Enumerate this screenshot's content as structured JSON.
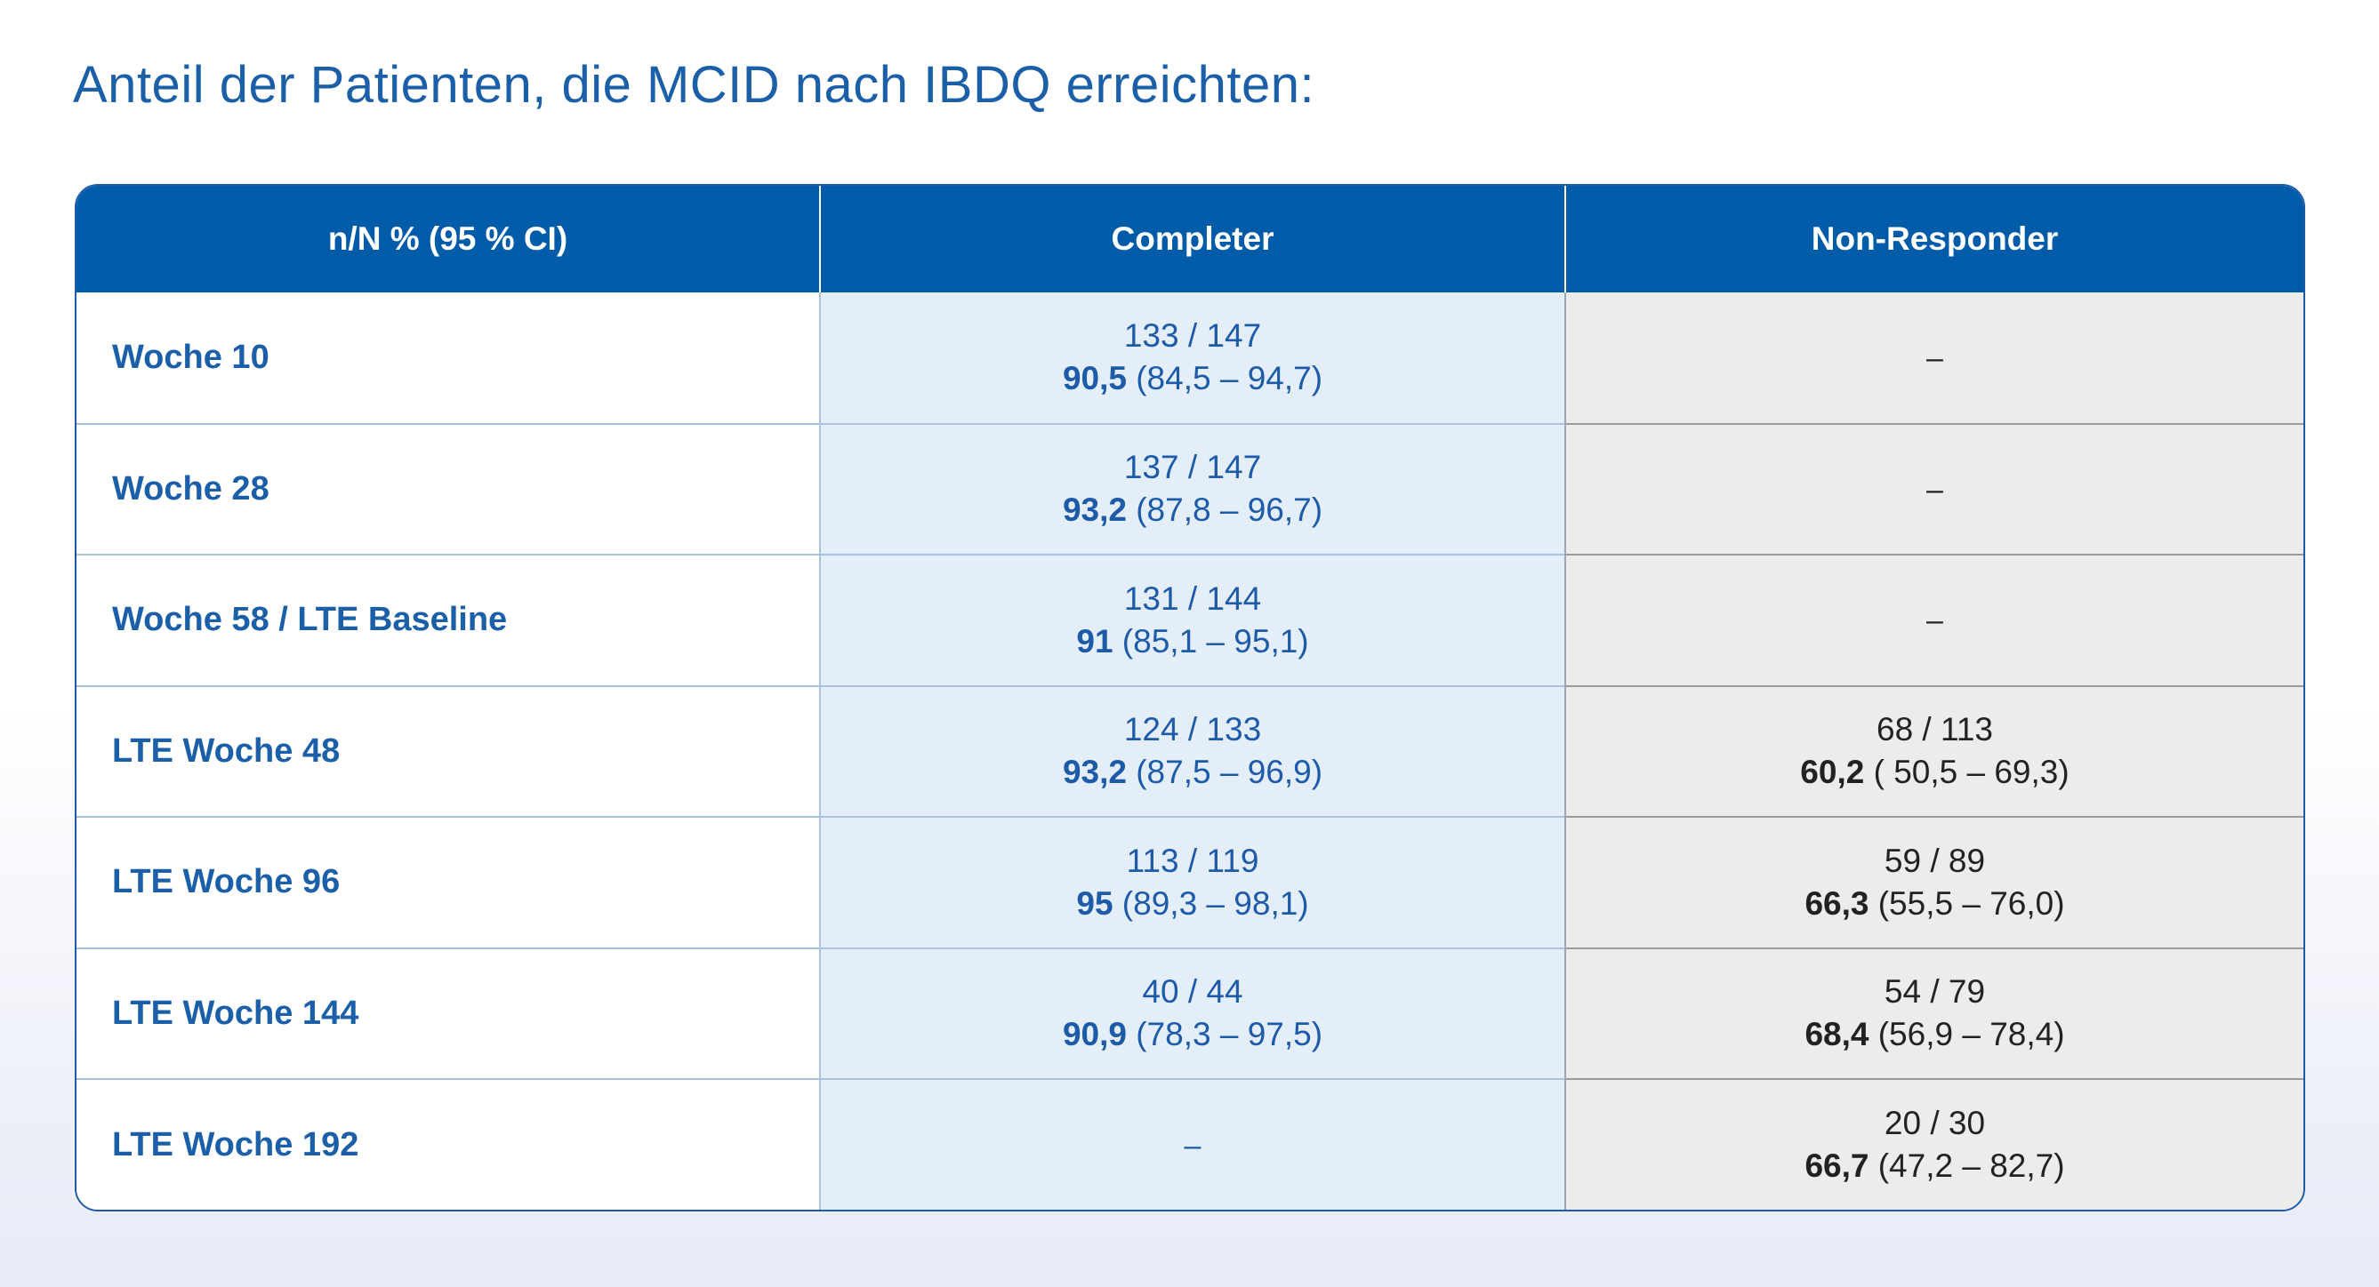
{
  "title": "Anteil der Patienten, die MCID nach IBDQ erreichten:",
  "table": {
    "headers": [
      "n/N % (95 % CI)",
      "Completer",
      "Non-Responder"
    ],
    "rows": [
      {
        "label": "Woche 10",
        "completer": {
          "nN": "133 / 147",
          "pct": "90,5",
          "ci": " (84,5 – 94,7)"
        },
        "nonresponder": {
          "dash": "–"
        }
      },
      {
        "label": "Woche 28",
        "completer": {
          "nN": "137 / 147",
          "pct": "93,2",
          "ci": " (87,8 – 96,7)"
        },
        "nonresponder": {
          "dash": "–"
        }
      },
      {
        "label": "Woche 58 / LTE Baseline",
        "completer": {
          "nN": "131 / 144",
          "pct": "91",
          "ci": " (85,1 – 95,1)"
        },
        "nonresponder": {
          "dash": "–"
        }
      },
      {
        "label": "LTE Woche 48",
        "completer": {
          "nN": "124 / 133",
          "pct": "93,2",
          "ci": " (87,5 – 96,9)"
        },
        "nonresponder": {
          "nN": "68 / 113",
          "pct": "60,2",
          "ci": " ( 50,5 – 69,3)"
        }
      },
      {
        "label": "LTE Woche 96",
        "completer": {
          "nN": "113 / 119",
          "pct": "95",
          "ci": " (89,3 – 98,1)"
        },
        "nonresponder": {
          "nN": "59 / 89",
          "pct": "66,3",
          "ci": " (55,5 – 76,0)"
        }
      },
      {
        "label": "LTE Woche 144",
        "completer": {
          "nN": "40 / 44",
          "pct": "90,9",
          "ci": " (78,3 – 97,5)"
        },
        "nonresponder": {
          "nN": "54 / 79",
          "pct": "68,4",
          "ci": " (56,9 – 78,4)"
        }
      },
      {
        "label": "LTE Woche 192",
        "completer": {
          "dash": "–"
        },
        "nonresponder": {
          "nN": "20 / 30",
          "pct": "66,7",
          "ci": " (47,2 – 82,7)"
        }
      }
    ]
  },
  "colors": {
    "title": "#1a5fa8",
    "header_bg": "#005ca9",
    "completer_bg": "#e3eef8",
    "nonresponder_bg": "#ececec"
  }
}
